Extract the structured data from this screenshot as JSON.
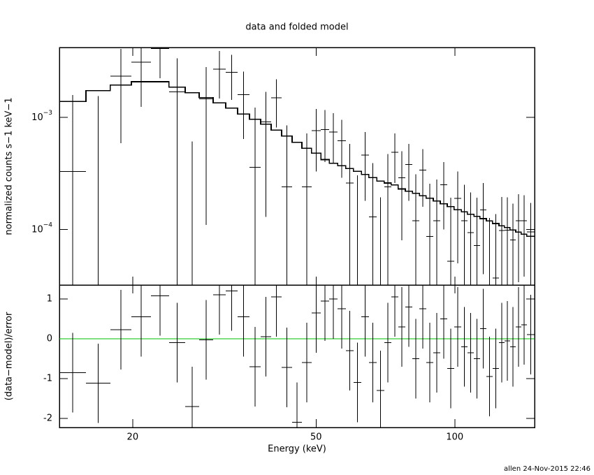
{
  "chart_data": [
    {
      "type": "errorbar",
      "title": "data and folded model",
      "ylabel": "normalized counts s−1 keV−1",
      "xlog": true,
      "ylog": true,
      "xlim": [
        13.87,
        149
      ],
      "ylim": [
        3.2e-05,
        0.0042
      ],
      "yticks": [
        {
          "value": 0.0001,
          "label": "10−4"
        },
        {
          "value": 0.001,
          "label": "10−3"
        }
      ],
      "color": "#000000",
      "model_color": "#000000",
      "bin_edges": [
        13.87,
        15.84,
        17.89,
        19.87,
        21.91,
        23.99,
        26.0,
        27.88,
        29.9,
        31.84,
        33.79,
        35.85,
        37.91,
        39.95,
        42.1,
        44.36,
        46.58,
        48.9,
        51.2,
        53.4,
        55.7,
        58.0,
        60.3,
        62.7,
        65.1,
        67.7,
        70.3,
        72.8,
        75.4,
        78.1,
        80.9,
        83.8,
        86.7,
        89.8,
        93.0,
        96.3,
        99.7,
        103.3,
        106.5,
        110.0,
        113.4,
        117.1,
        120.8,
        124.7,
        128.2,
        131.8,
        135.6,
        139.4,
        143.3,
        149
      ],
      "values": [
        0.00033,
        -1.4e-05,
        0.00234,
        0.00311,
        0.0041,
        0.00169,
        -0.00088,
        0.00146,
        0.00269,
        0.00252,
        0.0016,
        0.00036,
        0.00091,
        0.0015,
        0.00024,
        -0.00053,
        0.00024,
        0.00076,
        0.00078,
        0.00074,
        0.00062,
        0.00026,
        3.3e-06,
        0.00046,
        0.00013,
        -4.6e-05,
        0.00024,
        0.00049,
        0.00029,
        0.00038,
        0.00012,
        0.00034,
        8.7e-05,
        0.00012,
        0.00025,
        5.2e-05,
        0.00019,
        0.00012,
        9.4e-05,
        7.2e-05,
        0.00015,
        1.7e-05,
        3.7e-05,
        9.8e-05,
        9.9e-05,
        8.1e-05,
        0.00012,
        0.00012,
        9.5e-05
      ],
      "errors": [
        0.00125,
        0.00156,
        0.00175,
        0.00187,
        0.00187,
        0.00167,
        0.00149,
        0.00135,
        0.00122,
        0.00109,
        0.00096,
        0.00086,
        0.00078,
        0.00069,
        0.00061,
        0.00054,
        0.00048,
        0.00043,
        0.00038,
        0.00035,
        0.00033,
        0.00032,
        0.0003,
        0.00028,
        0.00026,
        0.00024,
        0.00023,
        0.00023,
        0.00021,
        0.0002,
        0.00019,
        0.00018,
        0.00017,
        0.00016,
        0.00015,
        0.00014,
        0.00014,
        0.00013,
        0.00012,
        0.00012,
        0.00011,
        0.00011,
        0.0001,
        9.7e-05,
        9.4e-05,
        8.9e-05,
        8.6e-05,
        8.2e-05,
        7.8e-05
      ],
      "model": [
        0.00139,
        0.00173,
        0.00194,
        0.00208,
        0.00208,
        0.00186,
        0.00166,
        0.0015,
        0.00135,
        0.00121,
        0.00107,
        0.00096,
        0.00087,
        0.00077,
        0.00068,
        0.0006,
        0.00053,
        0.00048,
        0.00042,
        0.00039,
        0.00037,
        0.00035,
        0.00033,
        0.00031,
        0.00029,
        0.00027,
        0.00026,
        0.00025,
        0.00023,
        0.00022,
        0.00021,
        0.0002,
        0.00019,
        0.00018,
        0.00017,
        0.00016,
        0.00015,
        0.000144,
        0.000137,
        0.000131,
        0.000125,
        0.000119,
        0.000113,
        0.000108,
        0.000104,
        9.9e-05,
        9.5e-05,
        9.1e-05,
        8.7e-05
      ]
    },
    {
      "type": "residual",
      "xlabel": "Energy (keV)",
      "ylabel": "(data−model)/error",
      "xlog": true,
      "xlim": [
        13.87,
        149
      ],
      "xticks": [
        20,
        50,
        100
      ],
      "ylim": [
        -2.23,
        1.35
      ],
      "yticks": [
        -2,
        -1,
        0,
        1
      ],
      "color": "#000000",
      "reference_value": 0,
      "reference_color": "#00c000",
      "values": [
        -0.85,
        -1.12,
        0.23,
        0.55,
        1.08,
        -0.1,
        -1.7,
        -0.03,
        1.1,
        1.2,
        0.55,
        -0.7,
        0.05,
        1.05,
        -0.72,
        -2.1,
        -0.6,
        0.65,
        0.95,
        1.0,
        0.75,
        -0.3,
        -1.1,
        0.55,
        -0.6,
        -1.3,
        -0.1,
        1.05,
        0.3,
        0.8,
        -0.5,
        0.75,
        -0.6,
        -0.35,
        0.5,
        -0.75,
        0.3,
        -0.2,
        -0.35,
        -0.5,
        0.25,
        -0.95,
        -0.75,
        -0.1,
        -0.05,
        -0.2,
        0.3,
        0.35,
        0.1
      ],
      "errors": [
        1,
        1,
        1,
        1,
        1,
        1,
        1,
        1,
        1,
        1,
        1,
        1,
        1,
        1,
        1,
        1,
        1,
        1,
        1,
        1,
        1,
        1,
        1,
        1,
        1,
        1,
        1,
        1,
        1,
        1,
        1,
        1,
        1,
        1,
        1,
        1,
        1,
        1,
        1,
        1,
        1,
        1,
        1,
        1,
        1,
        1,
        1,
        1,
        1
      ]
    }
  ],
  "footer": "allen 24-Nov-2015 22:46"
}
